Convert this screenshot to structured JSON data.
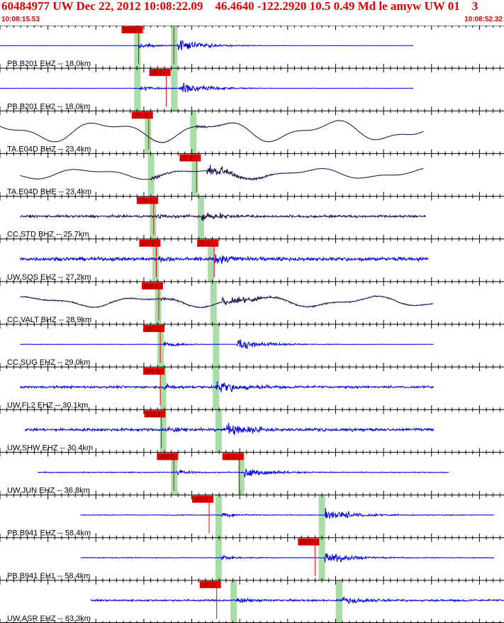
{
  "header": {
    "title": "60484977 UW Dec 22, 2012 10:08:22.09    46.4640 -122.2920 10.5 0.49 Md le amyw UW 01    3",
    "time_start": "10:08:15.53",
    "time_end": "10:08:52.32"
  },
  "colors": {
    "title": "#e00000",
    "grid": "#000000",
    "tick": "#000000",
    "phase_window": "#a8dca8",
    "pick_box": "#e00000",
    "pick_text": "#7a0000",
    "trace_blue": "#0000dd",
    "trace_dark": "#1a0a4a"
  },
  "chart_data": {
    "type": "line",
    "title": "",
    "x_range_seconds": [
      0,
      36.79
    ],
    "minor_tick_seconds": 0.5,
    "major_tick_seconds": 3.5,
    "traces": [
      {
        "label": "PB.B201 EHZ -- 18.0km",
        "color": "blue",
        "start": 0.0,
        "end": 0.82,
        "amp": 0.35,
        "noise": 0.01,
        "picks": [
          {
            "label": "iPc0",
            "t": 0.275
          },
          {
            "label": "",
            "t": 0.345
          }
        ],
        "windows": [
          0.272,
          0.345
        ],
        "style": "quake",
        "onset": 0.275,
        "s_onset": 0.35,
        "s_amp": 0.55
      },
      {
        "label": "PB.B201 EH2 -- 18.0km",
        "color": "blue",
        "start": 0.0,
        "end": 0.82,
        "amp": 0.3,
        "noise": 0.01,
        "picks": [
          {
            "label": "iS 1",
            "t": 0.33
          }
        ],
        "windows": [
          0.272,
          0.345
        ],
        "style": "quake",
        "onset": 0.277,
        "s_onset": 0.355,
        "s_amp": 0.6
      },
      {
        "label": "TA.E04D BHZ -- 23.4km",
        "color": "dark",
        "start": 0.0,
        "end": 0.84,
        "amp": 0.6,
        "noise": 0.01,
        "picks": [
          {
            "label": "iPc 1",
            "t": 0.295
          }
        ],
        "windows": [
          0.293,
          0.383
        ],
        "style": "long",
        "onset": 0.3,
        "s_onset": 0.39,
        "s_amp": 0.1
      },
      {
        "label": "TA.E04D BHE -- 23.4km",
        "color": "dark",
        "start": 0.04,
        "end": 0.84,
        "amp": 0.3,
        "noise": 0.01,
        "picks": [
          {
            "label": "iS 2",
            "t": 0.39
          }
        ],
        "windows": [
          0.299,
          0.386
        ],
        "style": "longquake",
        "onset": 0.3,
        "s_onset": 0.41,
        "s_amp": 0.55
      },
      {
        "label": "CC.STD BHZ -- 25.7km",
        "color": "dark",
        "start": 0.04,
        "end": 0.845,
        "amp": 0.15,
        "noise": 0.1,
        "picks": [
          {
            "label": "iPd 1",
            "t": 0.305
          }
        ],
        "windows": [
          0.303,
          0.398
        ],
        "style": "noisyquake",
        "onset": 0.31,
        "s_onset": 0.4,
        "s_amp": 0.4
      },
      {
        "label": "UW.SQS EHZ -- 27.2km",
        "color": "blue",
        "start": 0.04,
        "end": 0.85,
        "amp": 0.12,
        "noise": 0.15,
        "picks": [
          {
            "label": "eP 2",
            "t": 0.31
          },
          {
            "label": "iS 1",
            "t": 0.425
          }
        ],
        "windows": [
          0.308,
          0.418
        ],
        "style": "noisyquake",
        "onset": 0.315,
        "s_onset": 0.425,
        "s_amp": 0.45
      },
      {
        "label": "CC.VALT BHZ -- 28.9km",
        "color": "dark",
        "start": 0.04,
        "end": 0.86,
        "amp": 0.3,
        "noise": 0.05,
        "picks": [
          {
            "label": "iPd 1",
            "t": 0.315
          }
        ],
        "windows": [
          0.313,
          0.423
        ],
        "style": "longquake",
        "onset": 0.32,
        "s_onset": 0.44,
        "s_amp": 0.55
      },
      {
        "label": "CC.SUG EHZ -- 29.0km",
        "color": "blue",
        "start": 0.04,
        "end": 0.86,
        "amp": 0.03,
        "noise": 0.02,
        "picks": [
          {
            "label": "iPd 1",
            "t": 0.318
          }
        ],
        "windows": [
          0.318,
          0.428
        ],
        "style": "quake",
        "onset": 0.325,
        "s_onset": 0.47,
        "s_amp": 0.5
      },
      {
        "label": "UW.FL2 EHZ -- 30.1km",
        "color": "blue",
        "start": 0.04,
        "end": 0.86,
        "amp": 0.1,
        "noise": 0.1,
        "picks": [
          {
            "label": "iPc 1",
            "t": 0.318
          }
        ],
        "windows": [
          0.323,
          0.428
        ],
        "style": "noisyquake",
        "onset": 0.325,
        "s_onset": 0.43,
        "s_amp": 0.55
      },
      {
        "label": "UW.SHW EHZ -- 30.4km",
        "color": "blue",
        "start": 0.05,
        "end": 0.86,
        "amp": 0.1,
        "noise": 0.12,
        "picks": [
          {
            "label": "iPd 1",
            "t": 0.32
          }
        ],
        "windows": [
          0.323,
          0.433
        ],
        "style": "noisyquake",
        "onset": 0.33,
        "s_onset": 0.45,
        "s_amp": 0.5
      },
      {
        "label": "UW.JUN EHZ -- 36.8km",
        "color": "blue",
        "start": 0.075,
        "end": 0.89,
        "amp": 0.05,
        "noise": 0.04,
        "picks": [
          {
            "label": "iPd 1",
            "t": 0.345
          },
          {
            "label": "iS 1",
            "t": 0.475
          }
        ],
        "windows": [
          0.345,
          0.478
        ],
        "style": "quake",
        "onset": 0.35,
        "s_onset": 0.485,
        "s_amp": 0.5
      },
      {
        "label": "PB.B941 EHZ -- 58.4km",
        "color": "blue",
        "start": 0.16,
        "end": 0.98,
        "amp": 0.03,
        "noise": 0.03,
        "picks": [
          {
            "label": "iPc 1",
            "t": 0.415
          }
        ],
        "windows": [
          0.433,
          0.638
        ],
        "style": "quake",
        "onset": 0.44,
        "s_onset": 0.645,
        "s_amp": 0.6
      },
      {
        "label": "PB.B941 EH1 -- 58.4km",
        "color": "blue",
        "start": 0.16,
        "end": 0.98,
        "amp": 0.02,
        "noise": 0.03,
        "picks": [
          {
            "label": "iS 1",
            "t": 0.625
          }
        ],
        "windows": [
          0.433,
          0.638
        ],
        "style": "quake",
        "onset": 0.44,
        "s_onset": 0.645,
        "s_amp": 0.55
      },
      {
        "label": "UW.ASR EHZ -- 63.3km",
        "color": "blue",
        "start": 0.18,
        "end": 1.0,
        "amp": 0.06,
        "noise": 0.08,
        "picks": [
          {
            "label": "eP 2",
            "t": 0.43
          }
        ],
        "windows": [
          0.463,
          0.672
        ],
        "style": "noisyquake",
        "onset": 0.47,
        "s_onset": 0.68,
        "s_amp": 0.35
      }
    ]
  }
}
